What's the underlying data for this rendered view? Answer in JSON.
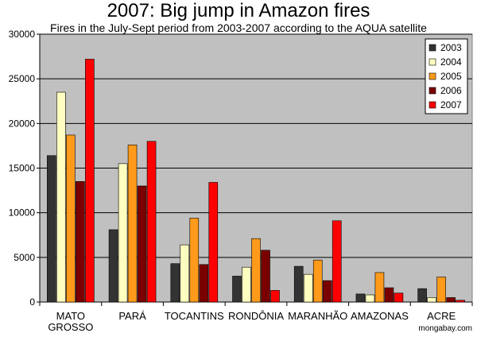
{
  "chart_data": {
    "type": "bar",
    "title": "2007: Big jump in Amazon fires",
    "subtitle": "Fires in the July-Sept period from 2003-2007 according to the AQUA satellite",
    "categories": [
      "MATO GROSSO",
      "PARÁ",
      "TOCANTINS",
      "RONDÔNIA",
      "MARANHÃO",
      "AMAZONAS",
      "ACRE"
    ],
    "category_lines": [
      [
        "MATO",
        "GROSSO"
      ],
      [
        "PARÁ"
      ],
      [
        "TOCANTINS"
      ],
      [
        "RONDÔNIA"
      ],
      [
        "MARANHÃO"
      ],
      [
        "AMAZONAS"
      ],
      [
        "ACRE"
      ]
    ],
    "series": [
      {
        "name": "2003",
        "color": "#333333",
        "values": [
          16400,
          8100,
          4300,
          2900,
          4000,
          900,
          1500
        ]
      },
      {
        "name": "2004",
        "color": "#ffffc0",
        "values": [
          23500,
          15500,
          6400,
          3900,
          3100,
          800,
          500
        ]
      },
      {
        "name": "2005",
        "color": "#ff9a1a",
        "values": [
          18700,
          17600,
          9400,
          7100,
          4700,
          3300,
          2800
        ]
      },
      {
        "name": "2006",
        "color": "#7a0000",
        "values": [
          13500,
          13000,
          4200,
          5800,
          2400,
          1600,
          500
        ]
      },
      {
        "name": "2007",
        "color": "#ff0000",
        "values": [
          27200,
          18000,
          13400,
          1300,
          9100,
          1000,
          200
        ]
      }
    ],
    "ylim": [
      0,
      30000
    ],
    "yticks": [
      0,
      5000,
      10000,
      15000,
      20000,
      25000,
      30000
    ],
    "grid": true,
    "legend_position": "top-right",
    "plot_bg": "#c0c0c0"
  },
  "credit": "mongabay.com"
}
